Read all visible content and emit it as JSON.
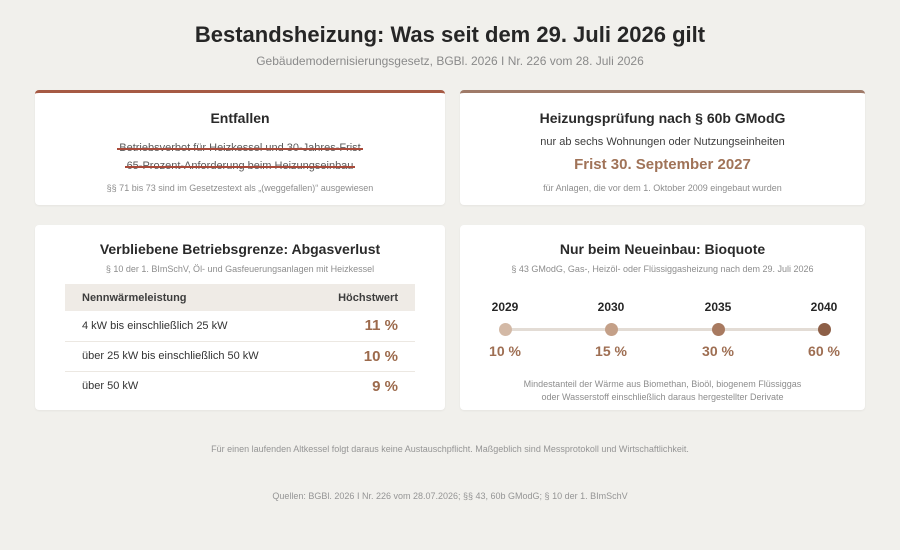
{
  "header": {
    "title": "Bestandsheizung: Was seit dem 29. Juli 2026 gilt",
    "subtitle": "Gebäudemodernisierungsgesetz, BGBl. 2026 I Nr. 226 vom 28. Juli 2026"
  },
  "card_entfallen": {
    "title": "Entfallen",
    "struck_items": [
      "Betriebsverbot für Heizkessel und 30-Jahres-Frist",
      "65-Prozent-Anforderung beim Heizungseinbau"
    ],
    "note": "§§ 71 bis 73 sind im Gesetzestext als „(weggefallen)“ ausgewiesen",
    "accent": "#a65a44"
  },
  "card_pruefung": {
    "title": "Heizungsprüfung nach § 60b GModG",
    "line": "nur ab sechs Wohnungen oder Nutzungseinheiten",
    "deadline": "Frist 30. September 2027",
    "note": "für Anlagen, die vor dem 1. Oktober 2009 eingebaut wurden",
    "accent": "#9f7a68"
  },
  "card_grenze": {
    "title": "Verbliebene Betriebsgrenze: Abgasverlust",
    "subtitle": "§ 10 der 1. BImSchV, Öl- und Gasfeuerungsanlagen mit Heizkessel",
    "columns": [
      "Nennwärmeleistung",
      "Höchstwert"
    ],
    "rows": [
      {
        "range": "4 kW bis einschließlich 25 kW",
        "value": "11 %"
      },
      {
        "range": "über 25 kW bis einschließlich 50 kW",
        "value": "10 %"
      },
      {
        "range": "über 50 kW",
        "value": "9 %"
      }
    ]
  },
  "card_bioquote": {
    "title": "Nur beim Neueinbau: Bioquote",
    "subtitle": "§ 43 GModG, Gas-, Heizöl- oder Flüssiggasheizung nach dem 29. Juli 2026",
    "steps": [
      {
        "year": "2029",
        "pct": "10 %",
        "color": "#d3b9a6"
      },
      {
        "year": "2030",
        "pct": "15 %",
        "color": "#c4a088"
      },
      {
        "year": "2035",
        "pct": "30 %",
        "color": "#a87a60"
      },
      {
        "year": "2040",
        "pct": "60 %",
        "color": "#8d5f47"
      }
    ],
    "note_line1": "Mindestanteil der Wärme aus Biomethan, Bioöl, biogenem Flüssiggas",
    "note_line2": "oder Wasserstoff einschließlich daraus hergestellter Derivate"
  },
  "footer": {
    "note": "Für einen laufenden Altkessel folgt daraus keine Austauschpflicht. Maßgeblich sind Messprotokoll und Wirtschaftlichkeit.",
    "sources": "Quellen: BGBl. 2026 I Nr. 226 vom 28.07.2026; §§ 43, 60b GModG; § 10 der 1. BImSchV"
  }
}
